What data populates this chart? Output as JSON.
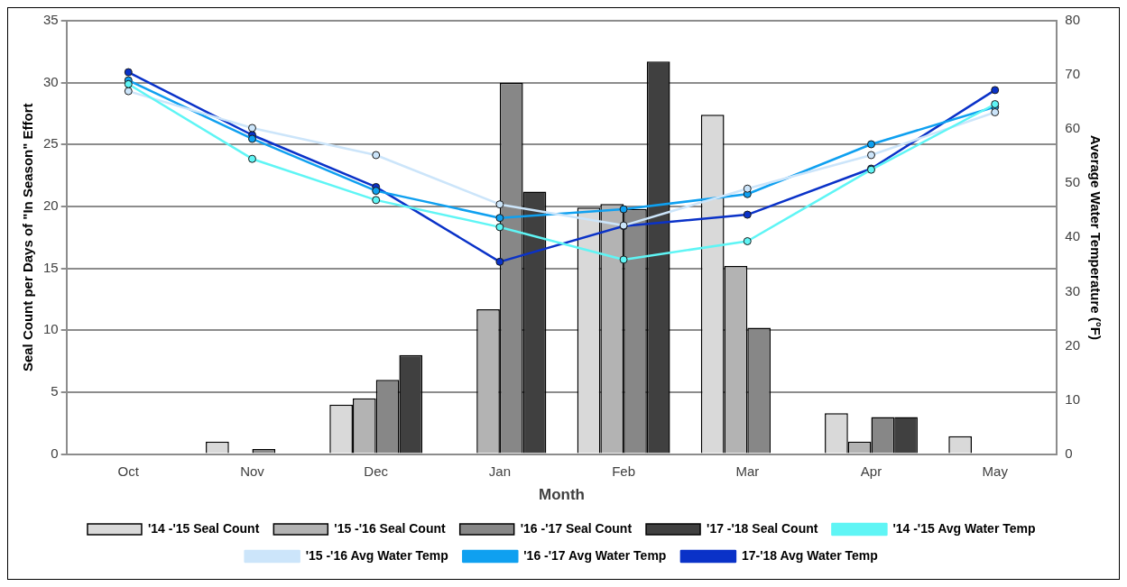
{
  "chart_data": {
    "type": "bar",
    "xlabel": "Month",
    "ylabel": "Seal Count per Days of \"In Season\" Effort",
    "y2label": "Average Water Temperature (°F)",
    "categories": [
      "Oct",
      "Nov",
      "Dec",
      "Jan",
      "Feb",
      "Mar",
      "Apr",
      "May"
    ],
    "series": [
      {
        "name": "'14 -'15 Seal Count",
        "color": "#d9d9d9",
        "values": [
          0,
          1.0,
          4.0,
          0,
          19.9,
          27.4,
          3.3,
          1.45
        ]
      },
      {
        "name": "'15 -'16 Seal Count",
        "color": "#b3b3b3",
        "values": [
          0,
          0,
          4.5,
          11.7,
          20.2,
          15.2,
          1.0,
          0
        ]
      },
      {
        "name": "'16 -'17 Seal Count",
        "color": "#878787",
        "values": [
          0,
          0.4,
          6.0,
          30.0,
          19.8,
          10.2,
          3.0,
          0
        ]
      },
      {
        "name": "'17 -'18 Seal Count",
        "color": "#404040",
        "values": [
          0,
          0,
          8.0,
          21.2,
          31.7,
          0,
          3.0,
          0
        ]
      },
      {
        "name": "'14 -'15 Avg Water Temp",
        "type": "line",
        "axis": "y2",
        "color": "#5ff5f5",
        "values": [
          68.3,
          54.5,
          46.9,
          41.9,
          35.9,
          39.3,
          52.5,
          64.6
        ]
      },
      {
        "name": "'15 -'16 Avg Water Temp",
        "type": "line",
        "axis": "y2",
        "color": "#cce5fa",
        "values": [
          67.0,
          60.2,
          55.2,
          46.1,
          42.2,
          49.0,
          55.2,
          63.1
        ]
      },
      {
        "name": "'16 -'17 Avg Water Temp",
        "type": "line",
        "axis": "y2",
        "color": "#0fa0f0",
        "values": [
          69.0,
          58.2,
          48.6,
          43.6,
          45.2,
          48.0,
          57.2,
          64.1
        ]
      },
      {
        "name": "17-'18 Avg Water Temp",
        "type": "line",
        "axis": "y2",
        "color": "#0a32c8",
        "values": [
          70.5,
          58.9,
          49.3,
          35.5,
          42.1,
          44.2,
          52.7,
          67.2
        ]
      }
    ],
    "ylim": [
      0,
      35
    ],
    "yticks": [
      0,
      5,
      10,
      15,
      20,
      25,
      30,
      35
    ],
    "y2lim": [
      0,
      80
    ],
    "y2ticks": [
      0,
      10,
      20,
      30,
      40,
      50,
      60,
      70,
      80
    ],
    "grid": "y",
    "legend": "bottom",
    "marker": "circle",
    "line_style": "solid"
  }
}
